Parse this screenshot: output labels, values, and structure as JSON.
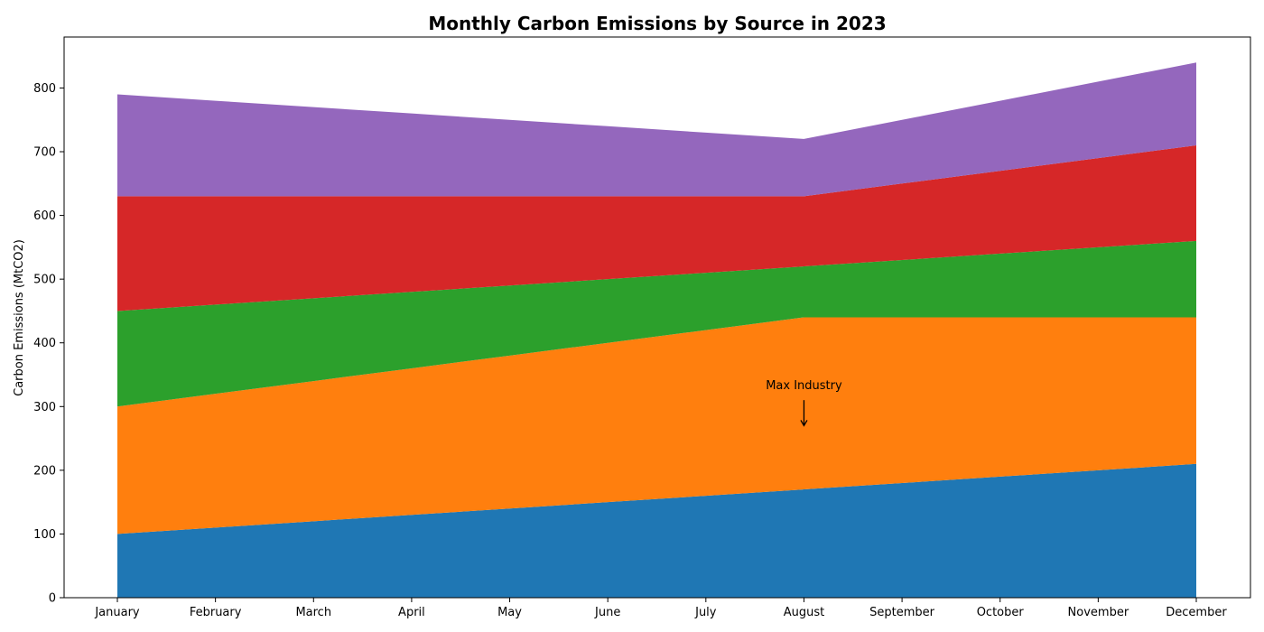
{
  "chart_data": {
    "type": "area",
    "stacked": true,
    "title": "Monthly Carbon Emissions by Source in 2023",
    "xlabel": "",
    "ylabel": "Carbon Emissions (MtCO2)",
    "categories": [
      "January",
      "February",
      "March",
      "April",
      "May",
      "June",
      "July",
      "August",
      "September",
      "October",
      "November",
      "December"
    ],
    "ylim": [
      0,
      880
    ],
    "yticks": [
      0,
      100,
      200,
      300,
      400,
      500,
      600,
      700,
      800
    ],
    "grid": false,
    "legend": "none",
    "series": [
      {
        "color": "#1f77b4",
        "values": [
          100,
          110,
          120,
          130,
          140,
          150,
          160,
          170,
          180,
          190,
          200,
          210
        ]
      },
      {
        "color": "#ff7f0e",
        "values": [
          200,
          210,
          220,
          230,
          240,
          250,
          260,
          270,
          260,
          250,
          240,
          230
        ]
      },
      {
        "color": "#2ca02c",
        "values": [
          150,
          140,
          130,
          120,
          110,
          100,
          90,
          80,
          90,
          100,
          110,
          120
        ]
      },
      {
        "color": "#d62728",
        "values": [
          180,
          170,
          160,
          150,
          140,
          130,
          120,
          110,
          120,
          130,
          140,
          150
        ]
      },
      {
        "color": "#9467bd",
        "values": [
          160,
          150,
          140,
          130,
          120,
          110,
          100,
          90,
          100,
          110,
          120,
          130
        ]
      }
    ],
    "annotations": [
      {
        "text": "Max Industry",
        "category": "August",
        "y_text": 320,
        "y_arrow": 270
      }
    ]
  }
}
